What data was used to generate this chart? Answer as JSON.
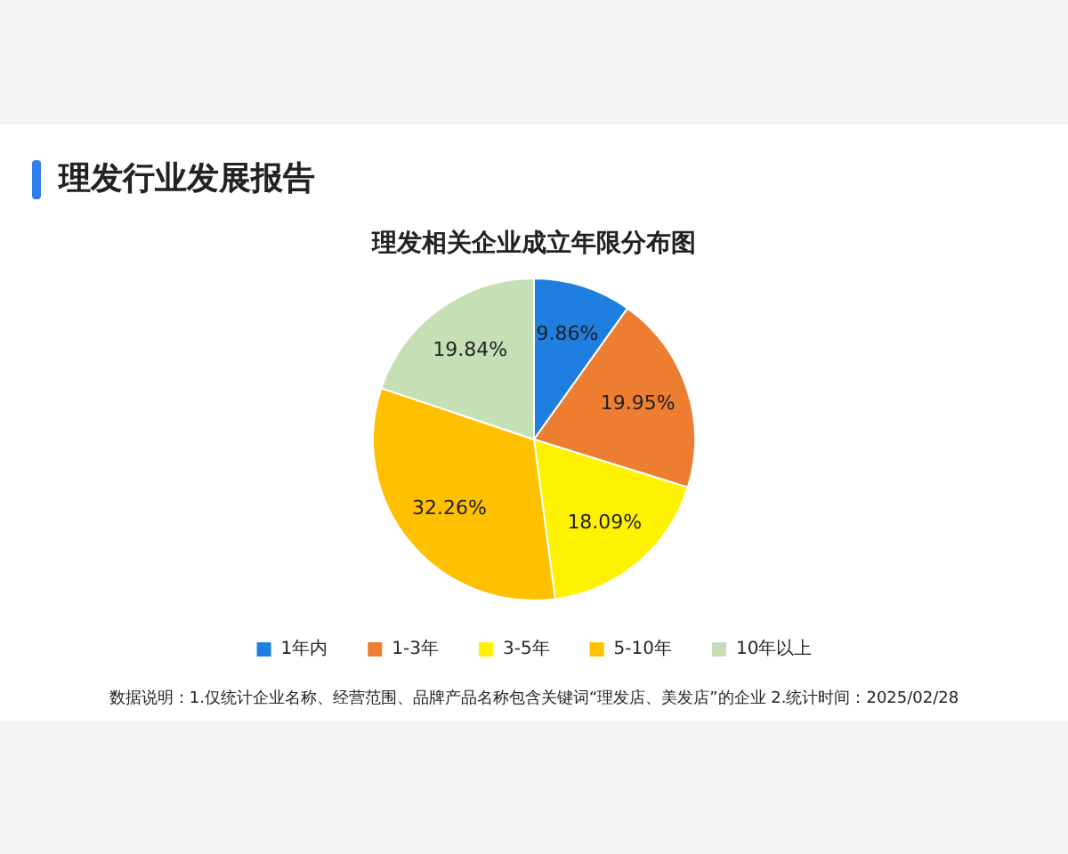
{
  "chart_data": {
    "type": "pie",
    "title": "理发行业发展报告",
    "subtitle": "理发相关企业成立年限分布图",
    "categories": [
      "1年内",
      "1-3年",
      "3-5年",
      "5-10年",
      "10年以上"
    ],
    "values": [
      9.86,
      19.95,
      18.09,
      32.26,
      19.84
    ],
    "colors": [
      "#1f7fe0",
      "#ed7d31",
      "#fff200",
      "#ffc000",
      "#c5e0b4"
    ],
    "value_labels": [
      "9.86%",
      "19.95%",
      "18.09%",
      "32.26%",
      "19.84%"
    ],
    "legend": "bottom",
    "annotations": [
      "数据说明：1.仅统计企业名称、经营范围、品牌产品名称包含关键词“理发店、美发店”的企业  2.统计时间：2025/02/28"
    ]
  }
}
